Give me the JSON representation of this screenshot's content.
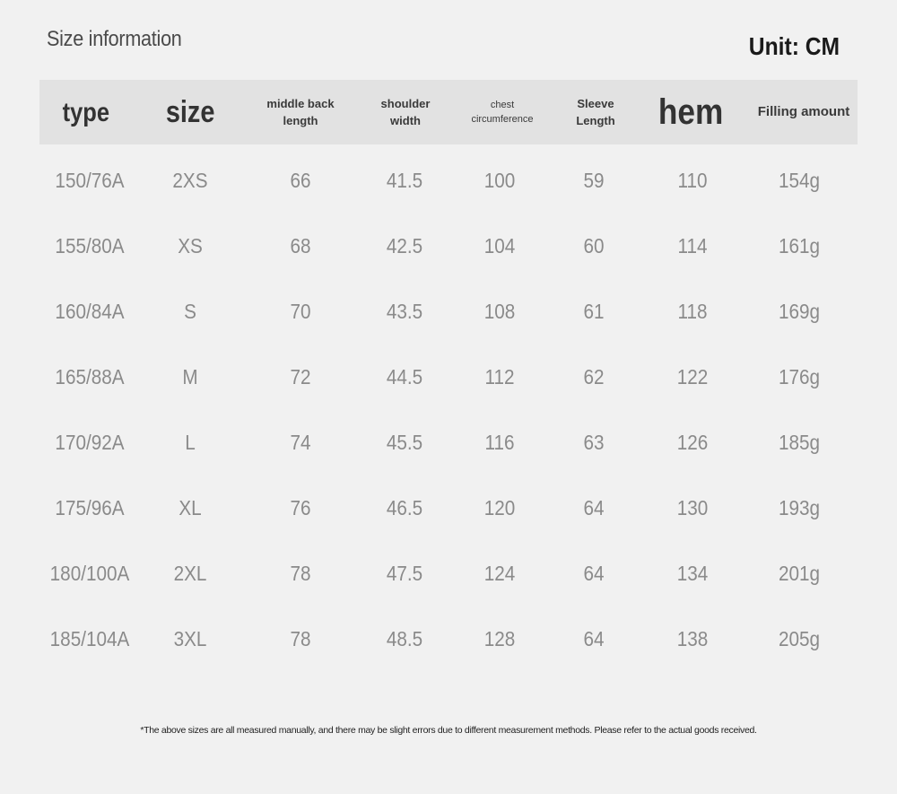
{
  "title": "Size information",
  "unit": "Unit: CM",
  "headers": {
    "type": "type",
    "size": "size",
    "middle_back_l1": "middle back",
    "middle_back_l2": "length",
    "shoulder_l1": "shoulder",
    "shoulder_l2": "width",
    "chest_l1": "chest",
    "chest_l2": "circumference",
    "sleeve_l1": "Sleeve",
    "sleeve_l2": "Length",
    "hem": "hem",
    "filling": "Filling amount"
  },
  "rows": [
    [
      "150/76A",
      "2XS",
      "66",
      "41.5",
      "100",
      "59",
      "110",
      "154g"
    ],
    [
      "155/80A",
      "XS",
      "68",
      "42.5",
      "104",
      "60",
      "114",
      "161g"
    ],
    [
      "160/84A",
      "S",
      "70",
      "43.5",
      "108",
      "61",
      "118",
      "169g"
    ],
    [
      "165/88A",
      "M",
      "72",
      "44.5",
      "112",
      "62",
      "122",
      "176g"
    ],
    [
      "170/92A",
      "L",
      "74",
      "45.5",
      "116",
      "63",
      "126",
      "185g"
    ],
    [
      "175/96A",
      "XL",
      "76",
      "46.5",
      "120",
      "64",
      "130",
      "193g"
    ],
    [
      "180/100A",
      "2XL",
      "78",
      "47.5",
      "124",
      "64",
      "134",
      "201g"
    ],
    [
      "185/104A",
      "3XL",
      "78",
      "48.5",
      "128",
      "64",
      "138",
      "205g"
    ]
  ],
  "footnote": "*The above sizes are all measured manually, and there may be slight errors due to different measurement methods. Please refer to the actual goods received."
}
